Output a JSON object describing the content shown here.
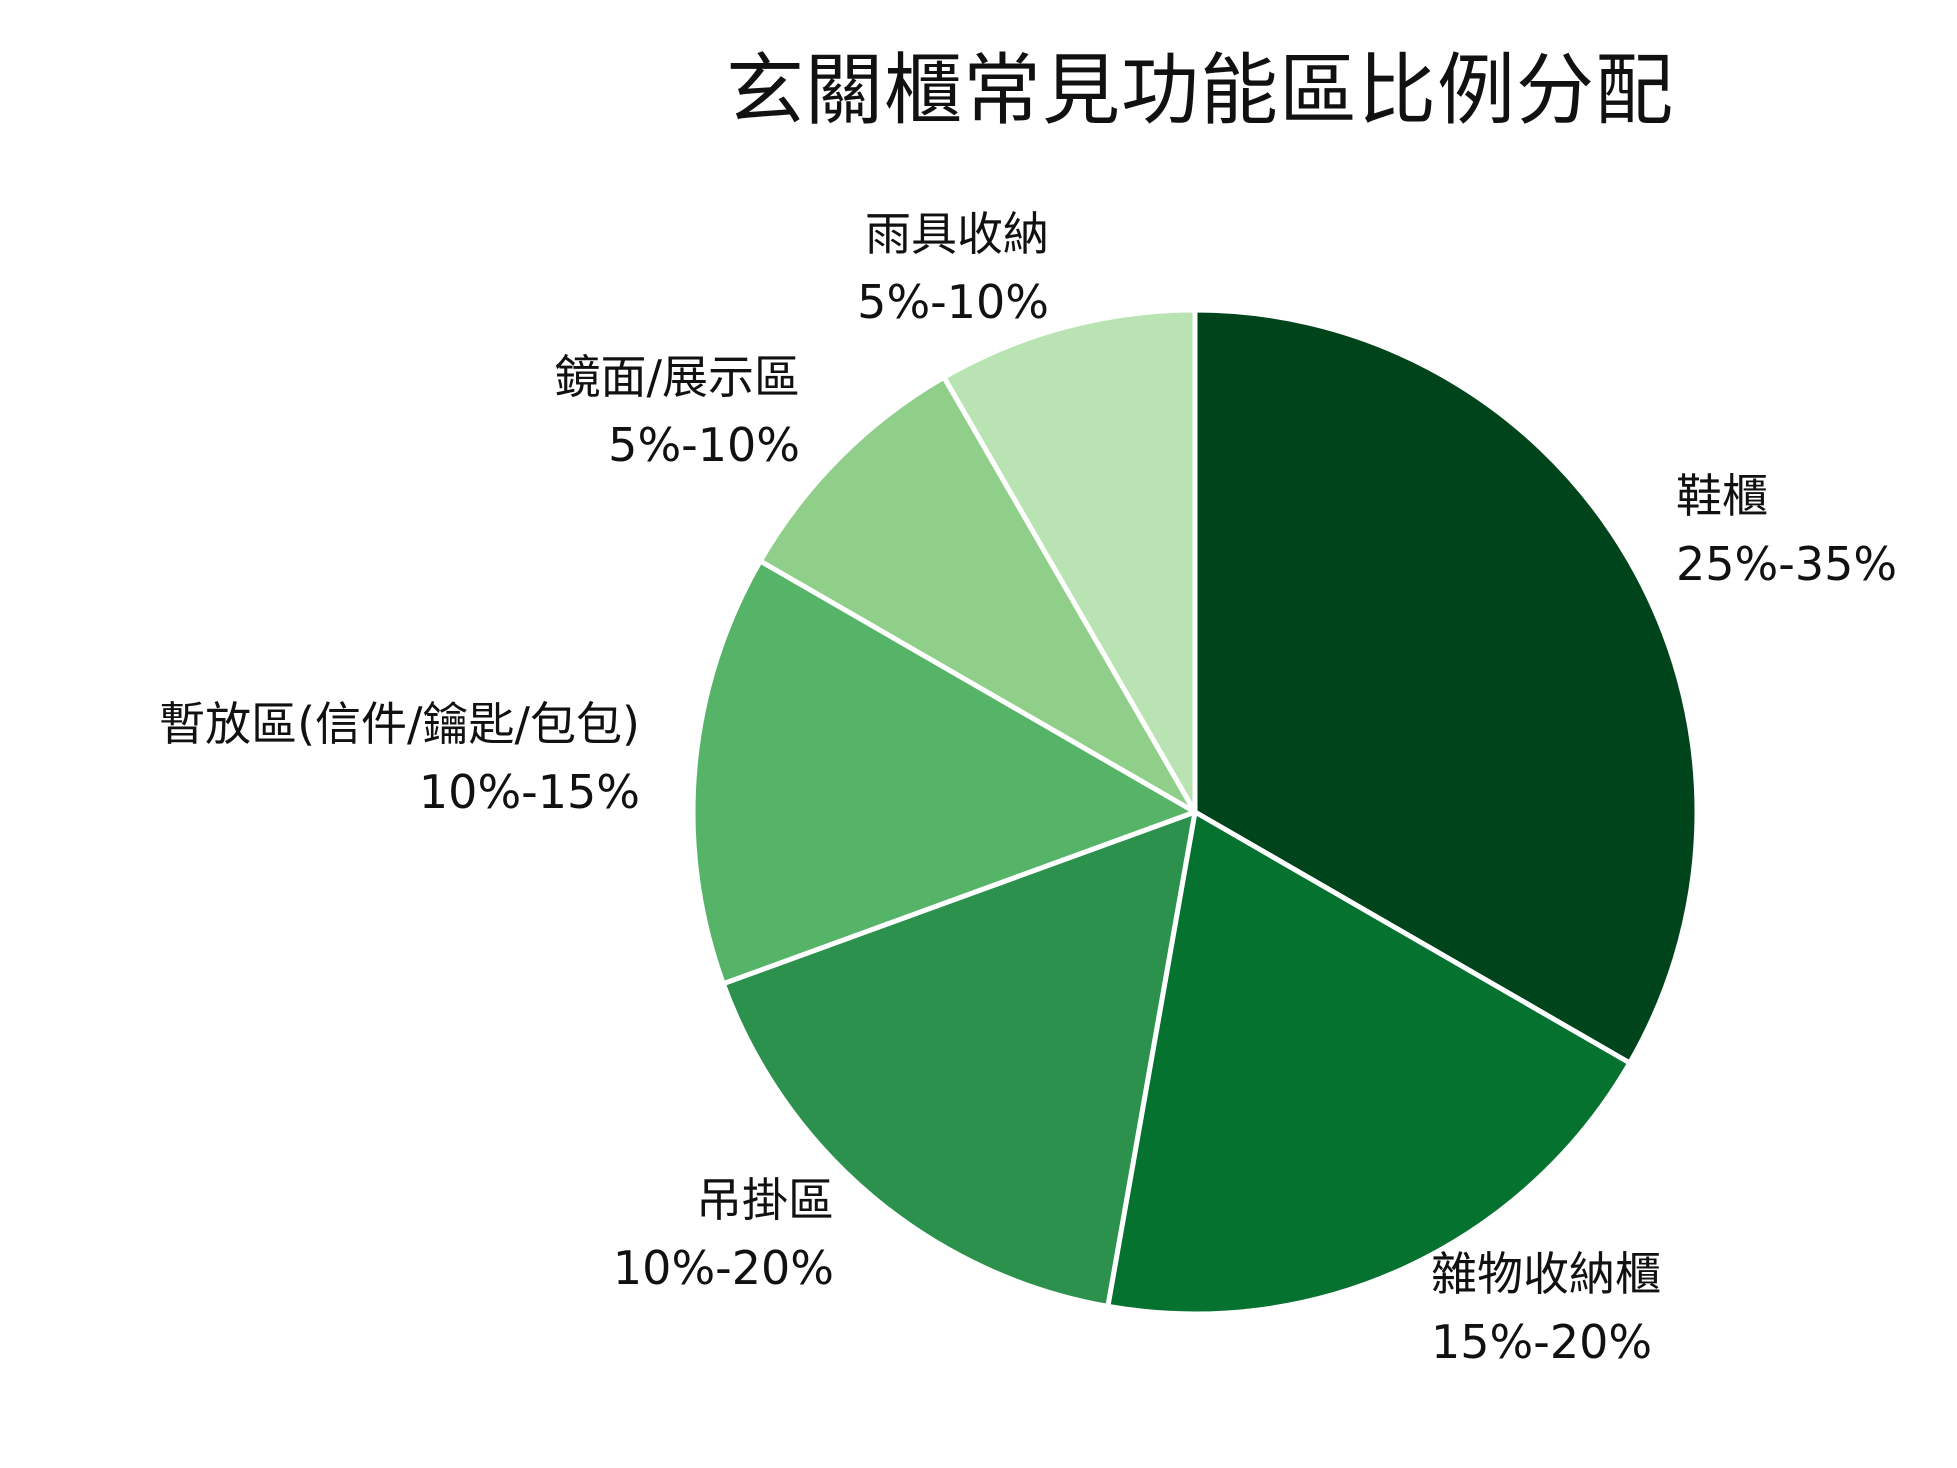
{
  "chart_data": {
    "type": "pie",
    "title": "玄關櫃常見功能區比例分配",
    "start_angle_deg": 0,
    "direction": "clockwise",
    "slices": [
      {
        "name": "鞋櫃",
        "range": "25%-35%",
        "value": 30,
        "color": "#00441b"
      },
      {
        "name": "雜物收納櫃",
        "range": "15%-20%",
        "value": 17.5,
        "color": "#067230"
      },
      {
        "name": "吊掛區",
        "range": "10%-20%",
        "value": 15,
        "color": "#2b914c"
      },
      {
        "name": "暫放區(信件/鑰匙/包包)",
        "range": "10%-15%",
        "value": 12.5,
        "color": "#56b468"
      },
      {
        "name": "鏡面/展示區",
        "range": "5%-10%",
        "value": 7.5,
        "color": "#8fcf89"
      },
      {
        "name": "雨具收納",
        "range": "5%-10%",
        "value": 7.5,
        "color": "#b9e3b2"
      }
    ],
    "legend": "none",
    "label_position": "outside"
  }
}
